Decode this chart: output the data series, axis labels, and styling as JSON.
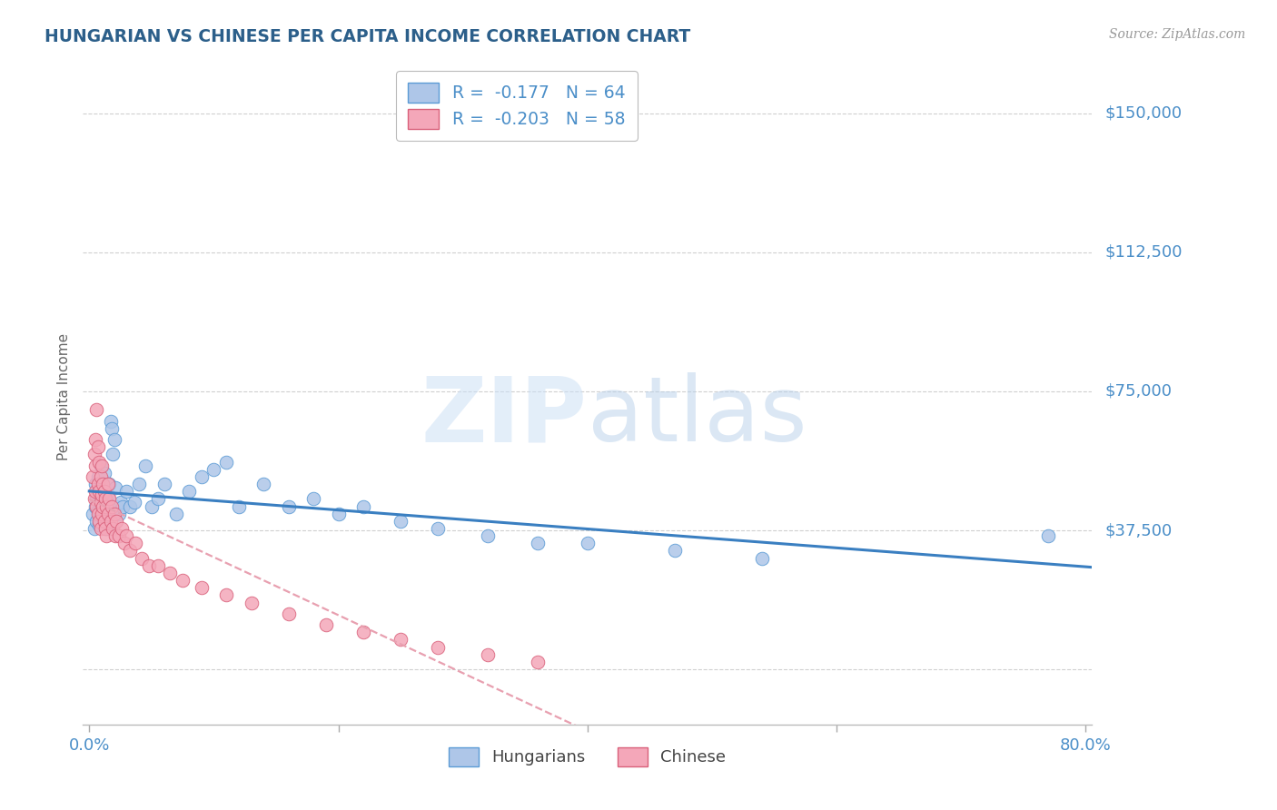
{
  "title": "HUNGARIAN VS CHINESE PER CAPITA INCOME CORRELATION CHART",
  "source": "Source: ZipAtlas.com",
  "ylabel": "Per Capita Income",
  "xlim_min": -0.005,
  "xlim_max": 0.805,
  "ylim_min": -15000,
  "ylim_max": 162000,
  "yticks": [
    0,
    37500,
    75000,
    112500,
    150000
  ],
  "ytick_labels": [
    "",
    "$37,500",
    "$75,000",
    "$112,500",
    "$150,000"
  ],
  "hungarian_color": "#aec6e8",
  "hungarian_edge_color": "#5b9bd5",
  "chinese_color": "#f4a7b9",
  "chinese_edge_color": "#d9607a",
  "trend_hungarian_color": "#3a7fc1",
  "trend_chinese_color": "#e8a0b0",
  "watermark_ZIP_color": "#d0e4f5",
  "watermark_atlas_color": "#c0d8f0",
  "legend_line1": "R =  -0.177   N = 64",
  "legend_line2": "R =  -0.203   N = 58",
  "title_color": "#2c5f8a",
  "tick_label_color": "#4a8ec8",
  "source_color": "#999999",
  "hungarian_x": [
    0.003,
    0.004,
    0.005,
    0.005,
    0.006,
    0.006,
    0.007,
    0.007,
    0.007,
    0.008,
    0.008,
    0.009,
    0.009,
    0.01,
    0.01,
    0.01,
    0.011,
    0.011,
    0.012,
    0.012,
    0.013,
    0.013,
    0.014,
    0.014,
    0.015,
    0.015,
    0.016,
    0.016,
    0.017,
    0.018,
    0.019,
    0.02,
    0.021,
    0.022,
    0.024,
    0.025,
    0.027,
    0.03,
    0.033,
    0.036,
    0.04,
    0.045,
    0.05,
    0.055,
    0.06,
    0.07,
    0.08,
    0.09,
    0.1,
    0.11,
    0.12,
    0.14,
    0.16,
    0.18,
    0.2,
    0.22,
    0.25,
    0.28,
    0.32,
    0.36,
    0.4,
    0.47,
    0.54,
    0.77
  ],
  "hungarian_y": [
    42000,
    38000,
    44000,
    50000,
    46000,
    40000,
    48000,
    43000,
    52000,
    45000,
    39000,
    47000,
    55000,
    42000,
    49000,
    44000,
    51000,
    41000,
    46000,
    53000,
    43000,
    48000,
    38000,
    45000,
    47000,
    42000,
    50000,
    44000,
    67000,
    65000,
    58000,
    62000,
    49000,
    44000,
    42000,
    45000,
    44000,
    48000,
    44000,
    45000,
    50000,
    55000,
    44000,
    46000,
    50000,
    42000,
    48000,
    52000,
    54000,
    56000,
    44000,
    50000,
    44000,
    46000,
    42000,
    44000,
    40000,
    38000,
    36000,
    34000,
    34000,
    32000,
    30000,
    36000
  ],
  "chinese_x": [
    0.003,
    0.004,
    0.004,
    0.005,
    0.005,
    0.005,
    0.006,
    0.006,
    0.007,
    0.007,
    0.007,
    0.008,
    0.008,
    0.008,
    0.009,
    0.009,
    0.009,
    0.01,
    0.01,
    0.01,
    0.011,
    0.011,
    0.012,
    0.012,
    0.013,
    0.013,
    0.014,
    0.014,
    0.015,
    0.015,
    0.016,
    0.017,
    0.018,
    0.019,
    0.02,
    0.021,
    0.022,
    0.024,
    0.026,
    0.028,
    0.03,
    0.033,
    0.037,
    0.042,
    0.048,
    0.055,
    0.065,
    0.075,
    0.09,
    0.11,
    0.13,
    0.16,
    0.19,
    0.22,
    0.25,
    0.28,
    0.32,
    0.36
  ],
  "chinese_y": [
    52000,
    58000,
    46000,
    62000,
    55000,
    48000,
    70000,
    44000,
    60000,
    50000,
    42000,
    56000,
    48000,
    40000,
    52000,
    45000,
    38000,
    55000,
    47000,
    42000,
    50000,
    44000,
    48000,
    40000,
    46000,
    38000,
    44000,
    36000,
    50000,
    42000,
    46000,
    40000,
    44000,
    38000,
    42000,
    36000,
    40000,
    36000,
    38000,
    34000,
    36000,
    32000,
    34000,
    30000,
    28000,
    28000,
    26000,
    24000,
    22000,
    20000,
    18000,
    15000,
    12000,
    10000,
    8000,
    6000,
    4000,
    2000
  ]
}
